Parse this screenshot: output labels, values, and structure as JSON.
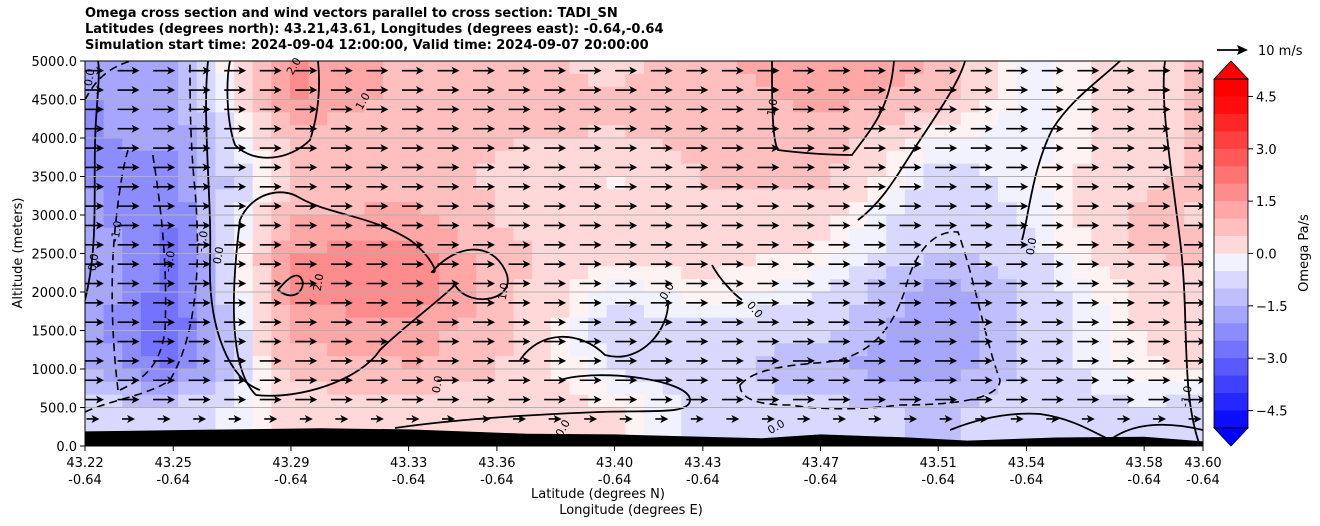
{
  "chart_data": {
    "type": "heatmap",
    "title": [
      "Omega cross section and wind vectors parallel to cross section: TADI_SN",
      "Latitudes (degrees north): 43.21,43.61, Longitudes (degrees east): -0.64,-0.64",
      "Simulation start time: 2024-09-04 12:00:00, Valid time: 2024-09-07 20:00:00"
    ],
    "ylabel": "Altitude (meters)",
    "xlabel_lat": "Latitude (degrees N)",
    "xlabel_lon": "Longitude (degrees E)",
    "ylim": [
      0,
      5000
    ],
    "yticks": [
      "0.0",
      "500.0",
      "1000.0",
      "1500.0",
      "2000.0",
      "2500.0",
      "3000.0",
      "3500.0",
      "4000.0",
      "4500.0",
      "5000.0"
    ],
    "xticks_lat": [
      "43.22",
      "43.25",
      "43.29",
      "43.33",
      "43.36",
      "43.40",
      "43.43",
      "43.47",
      "43.51",
      "43.54",
      "43.58",
      "43.60"
    ],
    "xticks_lon": [
      "-0.64",
      "-0.64",
      "-0.64",
      "-0.64",
      "-0.64",
      "-0.64",
      "-0.64",
      "-0.64",
      "-0.64",
      "-0.64",
      "-0.64",
      "-0.64"
    ],
    "grid": "horizontal",
    "colorbar": {
      "label": "Omega Pa/s",
      "range": [
        -5.0,
        5.0
      ],
      "ticks": [
        "-4.5",
        "-3.0",
        "-1.5",
        "0.0",
        "1.5",
        "3.0",
        "4.5"
      ],
      "extend": "both",
      "cmap": "bwr"
    },
    "quiver_key": {
      "label": "10 m/s",
      "value": 10
    },
    "wind": {
      "direction": "left-to-right (southerly, toward north)",
      "typical_speed_ms": 10
    },
    "omega_samples": {
      "x_lat": [
        43.22,
        43.25,
        43.29,
        43.33,
        43.36,
        43.4,
        43.43,
        43.47,
        43.51,
        43.54,
        43.58,
        43.6
      ],
      "alt_m": [
        500,
        1000,
        1500,
        2000,
        2500,
        3000,
        3500,
        4000,
        4500,
        5000
      ],
      "values": [
        [
          -0.5,
          -0.6,
          0.4,
          0.5,
          0.4,
          0.3,
          -0.4,
          -0.6,
          -0.8,
          -0.5,
          -0.3,
          -0.4
        ],
        [
          -1.2,
          -2.4,
          1.0,
          1.2,
          0.8,
          -0.3,
          -0.5,
          -1.2,
          -1.6,
          -0.6,
          0.2,
          0.3
        ],
        [
          -1.5,
          -2.8,
          1.4,
          1.6,
          0.9,
          -0.5,
          -0.4,
          -0.6,
          -1.8,
          -0.7,
          0.3,
          0.4
        ],
        [
          -1.3,
          -2.6,
          1.8,
          2.2,
          1.0,
          -0.2,
          0.2,
          -0.2,
          -1.6,
          -0.6,
          0.4,
          0.6
        ],
        [
          -1.3,
          -2.4,
          1.8,
          2.0,
          0.9,
          0.4,
          0.4,
          0.2,
          -0.8,
          -0.4,
          0.8,
          0.8
        ],
        [
          -1.6,
          -2.2,
          1.2,
          1.4,
          0.7,
          0.3,
          0.6,
          0.4,
          -0.6,
          -0.2,
          0.9,
          0.7
        ],
        [
          -1.8,
          -2.0,
          0.8,
          0.9,
          0.7,
          0.2,
          0.8,
          0.9,
          -0.4,
          -0.1,
          0.7,
          0.8
        ],
        [
          -1.8,
          -1.6,
          1.0,
          0.9,
          0.8,
          0.7,
          0.9,
          1.0,
          0.0,
          -0.2,
          0.5,
          0.8
        ],
        [
          -1.8,
          -1.6,
          1.8,
          1.0,
          1.0,
          0.8,
          0.9,
          1.4,
          1.0,
          -0.2,
          0.6,
          0.8
        ],
        [
          -1.6,
          -1.4,
          1.9,
          1.1,
          1.0,
          0.6,
          1.0,
          1.8,
          1.2,
          -0.2,
          0.6,
          0.8
        ]
      ]
    },
    "contour_labels": [
      "0.0",
      "-1.0",
      "-2.0",
      "1.0",
      "2.0"
    ],
    "terrain": "black filled",
    "color_scale": [
      "#0000ff",
      "#ffffff",
      "#ff0000"
    ],
    "terrain_color": "#000000"
  }
}
